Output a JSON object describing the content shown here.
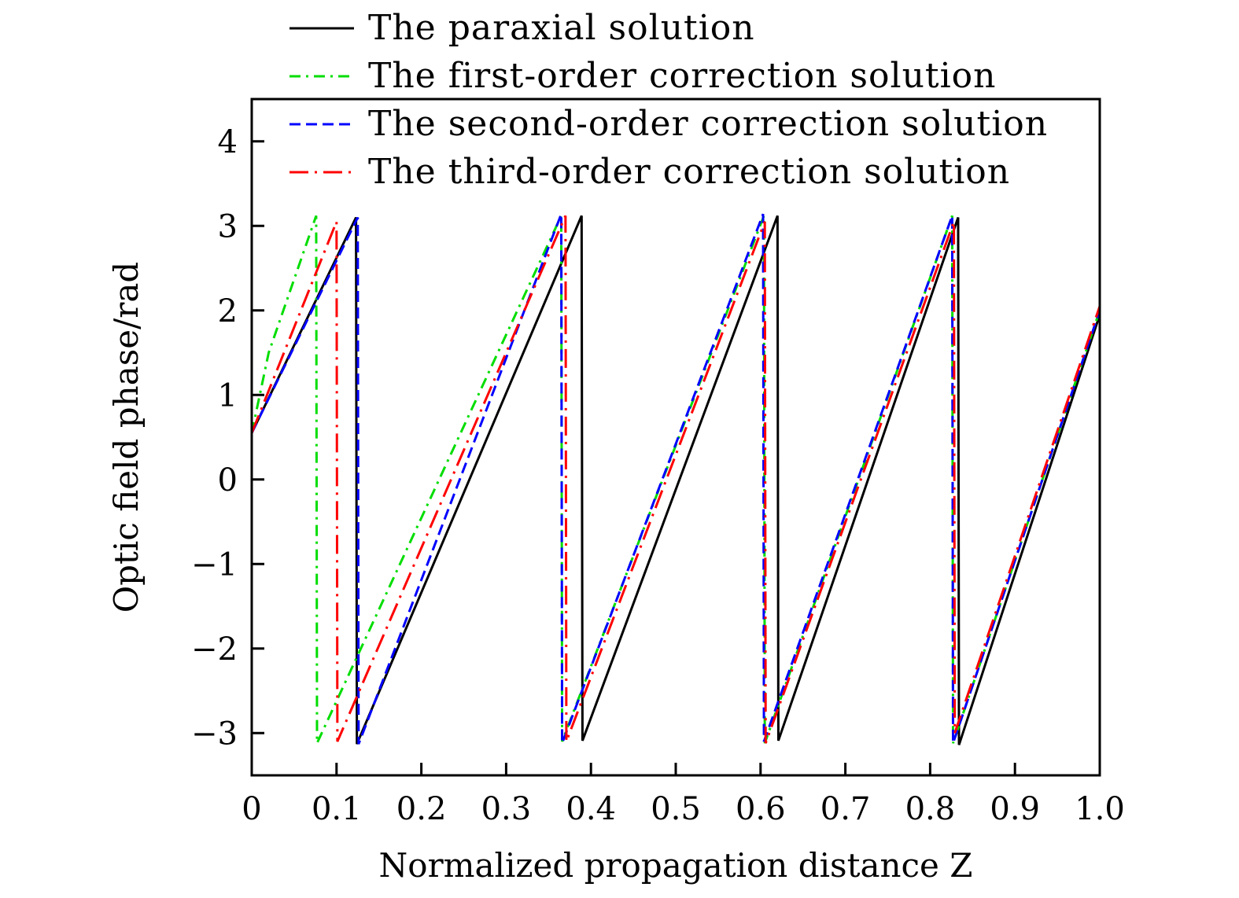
{
  "chart_data": {
    "type": "line",
    "title": "",
    "xlabel": "Normalized propagation distance Z",
    "ylabel": "Optic field phase/rad",
    "xlim": [
      0,
      1.0
    ],
    "ylim": [
      -3.5,
      4.5
    ],
    "grid": false,
    "legend_placement": "top",
    "x_ticks": [
      0,
      0.1,
      0.2,
      0.3,
      0.4,
      0.5,
      0.6,
      0.7,
      0.8,
      0.9,
      1.0
    ],
    "x_tick_labels": [
      "0",
      "0.1",
      "0.2",
      "0.3",
      "0.4",
      "0.5",
      "0.6",
      "0.7",
      "0.8",
      "0.9",
      "1.0"
    ],
    "y_ticks": [
      -3,
      -2,
      -1,
      0,
      1,
      2,
      3,
      4
    ],
    "y_tick_labels": [
      "−3",
      "−2",
      "−1",
      "0",
      "1",
      "2",
      "3",
      "4"
    ],
    "series": [
      {
        "name": "The paraxial solution",
        "color": "#000000",
        "dash": "solid",
        "points": [
          [
            0,
            0.55
          ],
          [
            0.123,
            3.1
          ],
          [
            0.124,
            -3.13
          ],
          [
            0.389,
            3.12
          ],
          [
            0.39,
            -3.09
          ],
          [
            0.62,
            3.12
          ],
          [
            0.621,
            -3.09
          ],
          [
            0.833,
            3.1
          ],
          [
            0.834,
            -3.14
          ],
          [
            1.0,
            1.95
          ]
        ]
      },
      {
        "name": "The first-order correction solution",
        "color": "#00dd00",
        "dash": "dashdot",
        "points": [
          [
            0,
            0.55
          ],
          [
            0.02,
            1.5
          ],
          [
            0.076,
            3.12
          ],
          [
            0.077,
            -3.12
          ],
          [
            0.365,
            3.12
          ],
          [
            0.366,
            -3.1
          ],
          [
            0.604,
            3.12
          ],
          [
            0.605,
            -3.12
          ],
          [
            0.826,
            3.12
          ],
          [
            0.827,
            -3.12
          ],
          [
            1.0,
            2.0
          ]
        ]
      },
      {
        "name": "The second-order correction solution",
        "color": "#0000ff",
        "dash": "dashed",
        "points": [
          [
            0,
            0.55
          ],
          [
            0.125,
            3.1
          ],
          [
            0.126,
            -3.13
          ],
          [
            0.365,
            3.14
          ],
          [
            0.366,
            -3.12
          ],
          [
            0.603,
            3.14
          ],
          [
            0.604,
            -3.1
          ],
          [
            0.826,
            3.12
          ],
          [
            0.827,
            -3.12
          ],
          [
            1.0,
            2.0
          ]
        ]
      },
      {
        "name": "The third-order correction solution",
        "color": "#ff0000",
        "dash": "longdashdot",
        "points": [
          [
            0,
            0.55
          ],
          [
            0.1,
            3.05
          ],
          [
            0.101,
            -3.1
          ],
          [
            0.37,
            3.12
          ],
          [
            0.371,
            -3.1
          ],
          [
            0.605,
            3.05
          ],
          [
            0.606,
            -3.12
          ],
          [
            0.828,
            3.05
          ],
          [
            0.829,
            -3.0
          ],
          [
            1.0,
            2.05
          ]
        ]
      }
    ]
  }
}
